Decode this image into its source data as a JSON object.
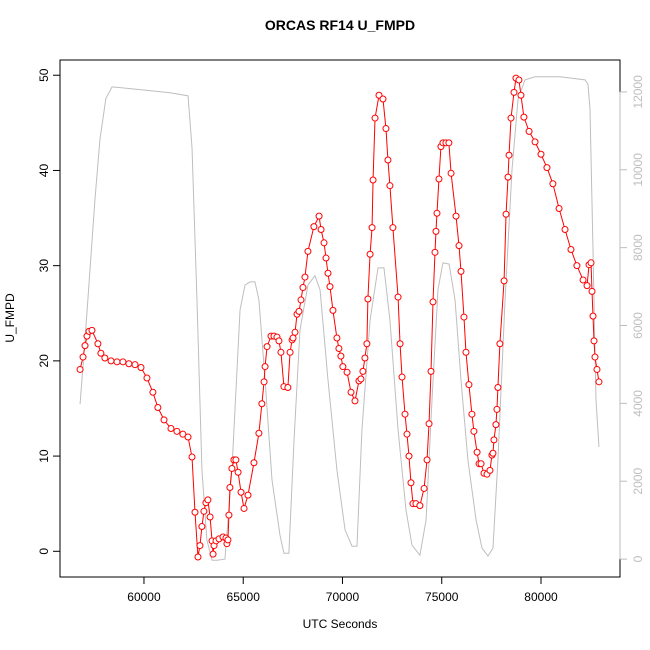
{
  "chart_data": {
    "type": "line",
    "title": "ORCAS RF14 U_FMPD",
    "x_label": "UTC Seconds",
    "y_label": "U_FMPD",
    "xlim": [
      55770,
      83980
    ],
    "xticks": [
      60000,
      65000,
      70000,
      75000,
      80000
    ],
    "ylim": [
      -2.7,
      51.6
    ],
    "yticks": [
      0,
      10,
      20,
      30,
      40,
      50
    ],
    "y2lim": [
      -460,
      12820
    ],
    "y2ticks": [
      0,
      2000,
      4000,
      6000,
      8000,
      10000,
      12000
    ],
    "series": [
      {
        "color": "#bebebe",
        "axis": "y2",
        "markers": false,
        "x": [
          56780,
          57030,
          57280,
          57530,
          57780,
          58080,
          58390,
          59800,
          61310,
          62220,
          62420,
          62670,
          62920,
          63170,
          63430,
          63680,
          64080,
          64430,
          64840,
          65090,
          65340,
          65590,
          65790,
          66100,
          66450,
          66850,
          67050,
          67300,
          67560,
          67860,
          68260,
          68610,
          68870,
          69270,
          69720,
          70130,
          70480,
          70730,
          70980,
          71390,
          71790,
          72090,
          72390,
          72800,
          73200,
          73500,
          73900,
          74210,
          74510,
          74810,
          75060,
          75370,
          75670,
          75970,
          76320,
          76730,
          77030,
          77330,
          77580,
          77830,
          78190,
          78540,
          78840,
          79190,
          79700,
          80960,
          82220,
          82370,
          82470,
          82620,
          82770,
          82920
        ],
        "values": [
          3980,
          5630,
          7430,
          9230,
          10770,
          11830,
          12130,
          12060,
          11980,
          11900,
          10570,
          6660,
          2290,
          490,
          -30,
          -30,
          0,
          2290,
          6400,
          7040,
          7120,
          7120,
          6660,
          4600,
          2030,
          620,
          150,
          150,
          3060,
          5890,
          7040,
          7280,
          6920,
          4600,
          2290,
          750,
          330,
          330,
          3320,
          6140,
          7480,
          7480,
          6140,
          3320,
          1260,
          360,
          100,
          1000,
          4090,
          6920,
          7610,
          7580,
          6660,
          4600,
          2540,
          1000,
          280,
          80,
          280,
          2540,
          6660,
          10000,
          11800,
          12310,
          12390,
          12390,
          12310,
          12190,
          11540,
          7940,
          4090,
          2880
        ]
      },
      {
        "color": "#ff0000",
        "axis": "y",
        "markers": true,
        "x": [
          56780,
          56930,
          57030,
          57130,
          57230,
          57380,
          57680,
          57830,
          58030,
          58340,
          58640,
          58940,
          59240,
          59550,
          59850,
          60150,
          60450,
          60700,
          61010,
          61360,
          61660,
          61960,
          62220,
          62420,
          62570,
          62720,
          62820,
          62920,
          63020,
          63120,
          63220,
          63330,
          63430,
          63480,
          63530,
          63630,
          63780,
          63980,
          64130,
          64180,
          64230,
          64280,
          64330,
          64430,
          64530,
          64630,
          64740,
          64890,
          65040,
          65240,
          65540,
          65790,
          65940,
          66050,
          66100,
          66200,
          66400,
          66550,
          66700,
          66800,
          66900,
          67050,
          67250,
          67360,
          67460,
          67510,
          67610,
          67710,
          67810,
          67910,
          68010,
          68110,
          68260,
          68560,
          68820,
          68920,
          69070,
          69170,
          69270,
          69370,
          69520,
          69720,
          69820,
          69920,
          70020,
          70230,
          70430,
          70630,
          70830,
          70930,
          71030,
          71130,
          71230,
          71280,
          71390,
          71490,
          71540,
          71640,
          71840,
          72040,
          72190,
          72290,
          72390,
          72540,
          72800,
          72900,
          73000,
          73150,
          73250,
          73350,
          73450,
          73550,
          73700,
          73900,
          74110,
          74260,
          74360,
          74460,
          74560,
          74660,
          74710,
          74760,
          74860,
          74960,
          75060,
          75210,
          75360,
          75470,
          75720,
          75870,
          75970,
          76120,
          76220,
          76370,
          76520,
          76620,
          76780,
          76880,
          76980,
          77130,
          77280,
          77430,
          77530,
          77580,
          77630,
          77730,
          77780,
          77830,
          77930,
          78140,
          78240,
          78340,
          78390,
          78490,
          78640,
          78740,
          78890,
          78990,
          79140,
          79400,
          79700,
          80000,
          80300,
          80600,
          80910,
          81210,
          81510,
          81810,
          82120,
          82320,
          82420,
          82520,
          82570,
          82620,
          82670,
          82720,
          82820,
          82920
        ],
        "values": [
          19.1,
          20.4,
          21.6,
          22.6,
          23.1,
          23.2,
          21.8,
          20.8,
          20.3,
          20.0,
          19.9,
          19.9,
          19.7,
          19.6,
          19.3,
          18.2,
          16.7,
          15.1,
          13.8,
          12.9,
          12.6,
          12.3,
          12.0,
          9.9,
          4.1,
          -0.6,
          0.6,
          2.6,
          4.2,
          5.1,
          5.4,
          3.6,
          1.1,
          -0.3,
          0.6,
          1.1,
          1.3,
          1.5,
          1.4,
          0.8,
          1.2,
          3.8,
          6.7,
          8.7,
          9.6,
          9.6,
          8.3,
          6.2,
          4.5,
          5.9,
          9.3,
          12.4,
          15.5,
          17.8,
          19.4,
          21.5,
          22.6,
          22.6,
          22.5,
          22.1,
          20.9,
          17.3,
          17.2,
          20.9,
          22.2,
          22.4,
          23.0,
          24.9,
          25.2,
          26.4,
          27.7,
          28.8,
          31.5,
          34.1,
          35.2,
          33.8,
          32.4,
          30.8,
          29.2,
          27.8,
          25.3,
          22.4,
          21.3,
          20.5,
          19.4,
          18.8,
          16.7,
          15.8,
          17.9,
          18.1,
          18.9,
          20.3,
          21.8,
          26.5,
          31.2,
          34.0,
          39.0,
          45.5,
          47.9,
          47.5,
          44.4,
          41.1,
          38.4,
          34.0,
          26.7,
          21.8,
          18.3,
          14.4,
          12.3,
          10.0,
          7.2,
          5.0,
          5.0,
          4.8,
          6.6,
          9.6,
          13.4,
          18.9,
          26.2,
          31.4,
          33.6,
          35.5,
          39.1,
          42.5,
          42.9,
          42.9,
          42.9,
          39.7,
          35.2,
          32.1,
          29.4,
          24.6,
          20.9,
          17.5,
          14.4,
          12.6,
          10.4,
          9.2,
          9.2,
          8.2,
          8.1,
          8.5,
          10.1,
          10.3,
          11.7,
          13.3,
          14.9,
          17.2,
          21.8,
          28.4,
          35.4,
          39.3,
          41.6,
          45.5,
          48.2,
          49.7,
          49.5,
          47.9,
          45.6,
          44.1,
          43.0,
          41.7,
          40.3,
          38.6,
          36.0,
          33.8,
          31.7,
          30.0,
          28.5,
          27.9,
          30.1,
          30.3,
          27.3,
          24.7,
          22.1,
          20.4,
          19.1,
          17.8
        ]
      }
    ]
  }
}
